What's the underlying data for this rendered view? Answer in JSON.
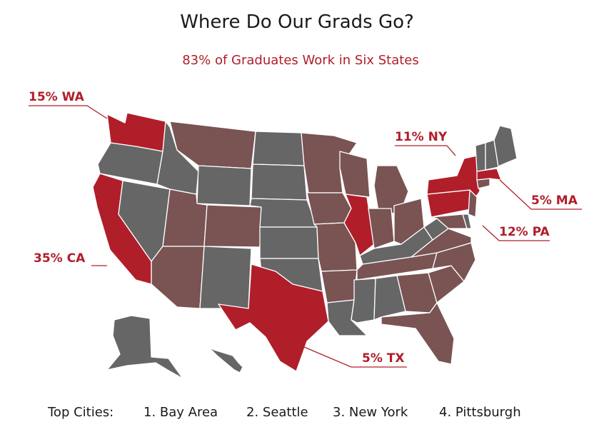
{
  "title": "Where Do Our Grads Go?",
  "subtitle": "83% of Graduates Work in Six States",
  "colors": {
    "highlight": "#b01e2a",
    "highlight_light": "#c42a35",
    "tinted": "#7a5353",
    "other": "#666666",
    "border": "#ffffff"
  },
  "callouts": {
    "wa": "15% WA",
    "ny": "11% NY",
    "ma": "5% MA",
    "pa": "12% PA",
    "ca": "35% CA",
    "tx": "5% TX"
  },
  "footer": {
    "label": "Top Cities:",
    "cities": [
      "1. Bay Area",
      "2. Seattle",
      "3. New York",
      "4. Pittsburgh"
    ]
  }
}
